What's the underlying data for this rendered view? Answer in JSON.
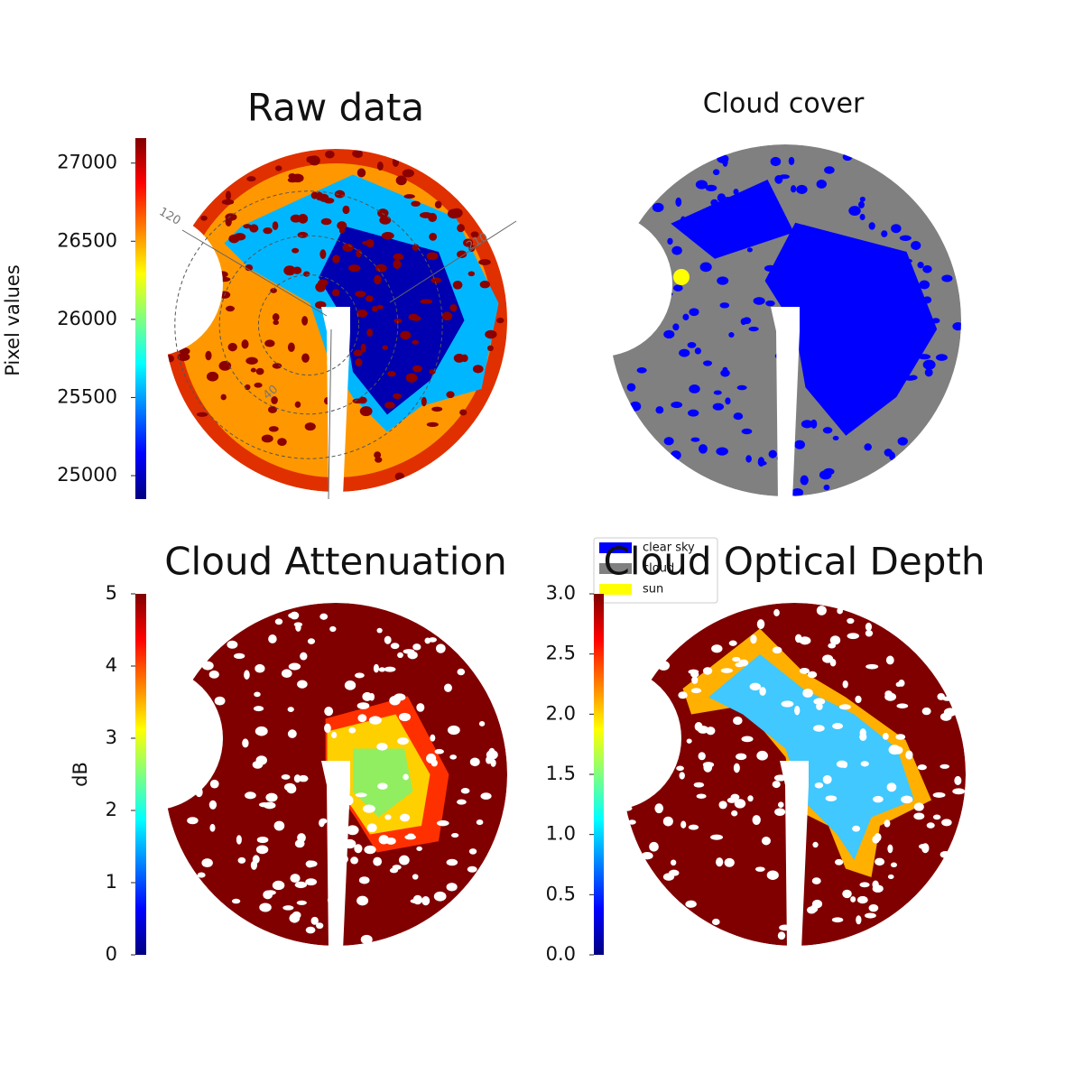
{
  "chart_data": [
    {
      "type": "image",
      "title": "Raw data",
      "colormap": "jet",
      "ylabel": "Pixel values",
      "ylim": [
        24850,
        27160
      ],
      "yticks": [
        25000,
        25500,
        26000,
        26500,
        27000
      ],
      "annotations": [
        "120",
        "210",
        "40"
      ]
    },
    {
      "type": "classes",
      "title": "Cloud cover",
      "series": [
        {
          "name": "clear sky",
          "color": "#0000ff"
        },
        {
          "name": "cloud",
          "color": "#808080"
        },
        {
          "name": "sun",
          "color": "#ffff00"
        }
      ]
    },
    {
      "type": "image",
      "title": "Cloud Attenuation",
      "colormap": "jet",
      "ylabel": "dB",
      "ylim": [
        0,
        5
      ],
      "yticks": [
        0,
        1,
        2,
        3,
        4,
        5
      ]
    },
    {
      "type": "image",
      "title": "Cloud Optical Depth",
      "colormap": "jet",
      "ylim": [
        0,
        3
      ],
      "yticks": [
        {
          "value": 0,
          "label": "0.0"
        },
        {
          "value": 0.5,
          "label": "0.5"
        },
        {
          "value": 1,
          "label": "1.0"
        },
        {
          "value": 1.5,
          "label": "1.5"
        },
        {
          "value": 2,
          "label": "2.0"
        },
        {
          "value": 2.5,
          "label": "2.5"
        },
        {
          "value": 3,
          "label": "3.0"
        }
      ]
    }
  ]
}
